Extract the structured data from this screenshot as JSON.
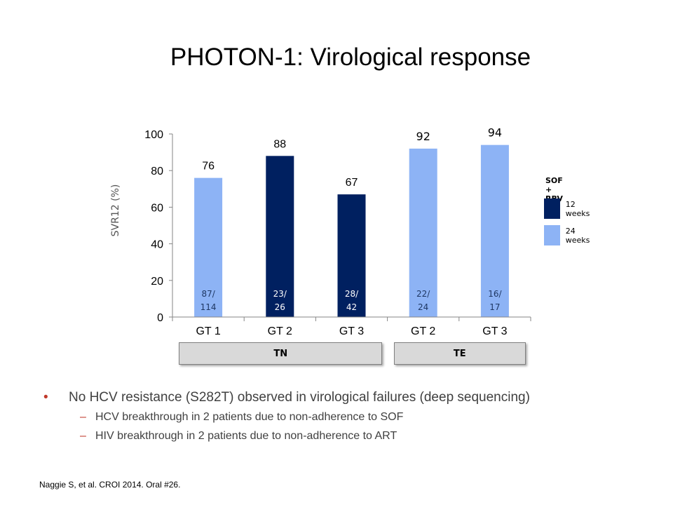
{
  "slide": {
    "title": "PHOTON-1: Virological response",
    "bullets": [
      {
        "text": "No HCV resistance (S282T) observed in virological failures (deep sequencing)",
        "sub": [
          "HCV breakthrough in 2 patients due to non-adherence to SOF",
          "HIV breakthrough in 2 patients due to non-adherence to ART"
        ]
      }
    ],
    "footnote": "Naggie S, et al. CROI 2014. Oral #26.",
    "bullet_glyph": "•",
    "dash_glyph": "–"
  },
  "groups": [
    {
      "label": "TN",
      "categories": [
        0,
        2
      ]
    },
    {
      "label": "TE",
      "categories": [
        3,
        4
      ]
    }
  ],
  "legend": {
    "title": "SOF + RBV",
    "items": [
      {
        "label": "12 weeks",
        "color": "#002060"
      },
      {
        "label": "24 weeks",
        "color": "#8db3f5"
      }
    ]
  },
  "chart_data": {
    "type": "bar",
    "categories": [
      "GT 1",
      "GT 2",
      "GT 3",
      "GT 2",
      "GT 3"
    ],
    "values": [
      76,
      88,
      67,
      92,
      94
    ],
    "value_labels": [
      "76",
      "88",
      "67",
      "92",
      "94"
    ],
    "duration": [
      "24 weeks",
      "12 weeks",
      "12 weeks",
      "24 weeks",
      "24 weeks"
    ],
    "fractions": [
      [
        "87/",
        "114"
      ],
      [
        "23/",
        "26"
      ],
      [
        "28/",
        "42"
      ],
      [
        "22/",
        "24"
      ],
      [
        "16/",
        "17"
      ]
    ],
    "ylabel": "SVR12 (%)",
    "ylim": [
      0,
      100
    ],
    "yticks": [
      0,
      20,
      40,
      60,
      80,
      100
    ],
    "grid": false,
    "legend_position": "right"
  }
}
